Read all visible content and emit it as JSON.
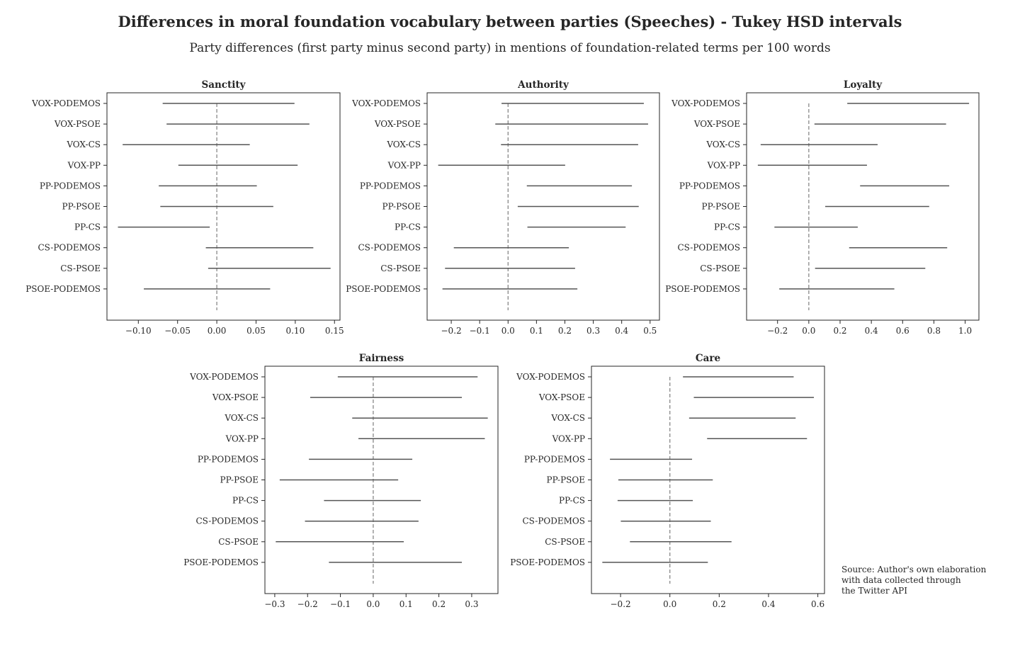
{
  "title": "Differences in moral foundation vocabulary between parties (Speeches) - Tukey HSD intervals",
  "subtitle": "Party differences (first party minus second party) in mentions of foundation-related terms per 100 words",
  "source_lines": [
    "Source: Author's own elaboration",
    "with data collected through",
    "the Twitter API"
  ],
  "colors": {
    "interval": "#555555",
    "zero_line": "#888888",
    "axes": "#262626"
  },
  "chart_data": [
    {
      "type": "interval",
      "title": "Sanctity",
      "xlim": [
        -0.14,
        0.157
      ],
      "xticks": [
        -0.1,
        -0.05,
        0.0,
        0.05,
        0.1,
        0.15
      ],
      "xtick_labels": [
        "−0.10",
        "−0.05",
        "0.00",
        "0.05",
        "0.10",
        "0.15"
      ],
      "grid": false,
      "zero_line": 0,
      "categories": [
        "VOX-PODEMOS",
        "VOX-PSOE",
        "VOX-CS",
        "VOX-PP",
        "PP-PODEMOS",
        "PP-PSOE",
        "PP-CS",
        "CS-PODEMOS",
        "CS-PSOE",
        "PSOE-PODEMOS"
      ],
      "intervals": [
        [
          -0.069,
          0.099
        ],
        [
          -0.064,
          0.118
        ],
        [
          -0.12,
          0.042
        ],
        [
          -0.049,
          0.103
        ],
        [
          -0.074,
          0.051
        ],
        [
          -0.072,
          0.072
        ],
        [
          -0.126,
          -0.009
        ],
        [
          -0.014,
          0.123
        ],
        [
          -0.011,
          0.145
        ],
        [
          -0.093,
          0.068
        ]
      ]
    },
    {
      "type": "interval",
      "title": "Authority",
      "xlim": [
        -0.285,
        0.533
      ],
      "xticks": [
        -0.2,
        -0.1,
        0.0,
        0.1,
        0.2,
        0.3,
        0.4,
        0.5
      ],
      "xtick_labels": [
        "−0.2",
        "−0.1",
        "0.0",
        "0.1",
        "0.2",
        "0.3",
        "0.4",
        "0.5"
      ],
      "grid": false,
      "zero_line": 0,
      "categories": [
        "VOX-PODEMOS",
        "VOX-PSOE",
        "VOX-CS",
        "VOX-PP",
        "PP-PODEMOS",
        "PP-PSOE",
        "PP-CS",
        "CS-PODEMOS",
        "CS-PSOE",
        "PSOE-PODEMOS"
      ],
      "intervals": [
        [
          -0.023,
          0.478
        ],
        [
          -0.045,
          0.493
        ],
        [
          -0.025,
          0.458
        ],
        [
          -0.246,
          0.201
        ],
        [
          0.066,
          0.436
        ],
        [
          0.034,
          0.46
        ],
        [
          0.068,
          0.414
        ],
        [
          -0.191,
          0.214
        ],
        [
          -0.222,
          0.236
        ],
        [
          -0.231,
          0.244
        ]
      ]
    },
    {
      "type": "interval",
      "title": "Loyalty",
      "xlim": [
        -0.398,
        1.088
      ],
      "xticks": [
        -0.2,
        0.0,
        0.2,
        0.4,
        0.6,
        0.8,
        1.0
      ],
      "xtick_labels": [
        "−0.2",
        "0.0",
        "0.2",
        "0.4",
        "0.6",
        "0.8",
        "1.0"
      ],
      "grid": false,
      "zero_line": 0,
      "categories": [
        "VOX-PODEMOS",
        "VOX-PSOE",
        "VOX-CS",
        "VOX-PP",
        "PP-PODEMOS",
        "PP-PSOE",
        "PP-CS",
        "CS-PODEMOS",
        "CS-PSOE",
        "PSOE-PODEMOS"
      ],
      "intervals": [
        [
          0.246,
          1.025
        ],
        [
          0.036,
          0.878
        ],
        [
          -0.308,
          0.44
        ],
        [
          -0.326,
          0.372
        ],
        [
          0.328,
          0.898
        ],
        [
          0.105,
          0.77
        ],
        [
          -0.22,
          0.313
        ],
        [
          0.258,
          0.885
        ],
        [
          0.04,
          0.745
        ],
        [
          -0.189,
          0.547
        ]
      ]
    },
    {
      "type": "interval",
      "title": "Fairness",
      "xlim": [
        -0.33,
        0.38
      ],
      "xticks": [
        -0.3,
        -0.2,
        -0.1,
        0.0,
        0.1,
        0.2,
        0.3
      ],
      "xtick_labels": [
        "−0.3",
        "−0.2",
        "−0.1",
        "0.0",
        "0.1",
        "0.2",
        "0.3"
      ],
      "grid": false,
      "zero_line": 0,
      "categories": [
        "VOX-PODEMOS",
        "VOX-PSOE",
        "VOX-CS",
        "VOX-PP",
        "PP-PODEMOS",
        "PP-PSOE",
        "PP-CS",
        "CS-PODEMOS",
        "CS-PSOE",
        "PSOE-PODEMOS"
      ],
      "intervals": [
        [
          -0.108,
          0.318
        ],
        [
          -0.192,
          0.27
        ],
        [
          -0.064,
          0.349
        ],
        [
          -0.045,
          0.34
        ],
        [
          -0.196,
          0.119
        ],
        [
          -0.285,
          0.076
        ],
        [
          -0.15,
          0.145
        ],
        [
          -0.208,
          0.138
        ],
        [
          -0.297,
          0.093
        ],
        [
          -0.135,
          0.27
        ]
      ]
    },
    {
      "type": "interval",
      "title": "Care",
      "xlim": [
        -0.318,
        0.627
      ],
      "xticks": [
        -0.2,
        0.0,
        0.2,
        0.4,
        0.6
      ],
      "xtick_labels": [
        "−0.2",
        "0.0",
        "0.2",
        "0.4",
        "0.6"
      ],
      "grid": false,
      "zero_line": 0,
      "categories": [
        "VOX-PODEMOS",
        "VOX-PSOE",
        "VOX-CS",
        "VOX-PP",
        "PP-PODEMOS",
        "PP-PSOE",
        "PP-CS",
        "CS-PODEMOS",
        "CS-PSOE",
        "PSOE-PODEMOS"
      ],
      "intervals": [
        [
          0.053,
          0.502
        ],
        [
          0.097,
          0.584
        ],
        [
          0.078,
          0.51
        ],
        [
          0.151,
          0.556
        ],
        [
          -0.243,
          0.09
        ],
        [
          -0.209,
          0.174
        ],
        [
          -0.212,
          0.093
        ],
        [
          -0.199,
          0.166
        ],
        [
          -0.162,
          0.25
        ],
        [
          -0.274,
          0.154
        ]
      ]
    }
  ]
}
